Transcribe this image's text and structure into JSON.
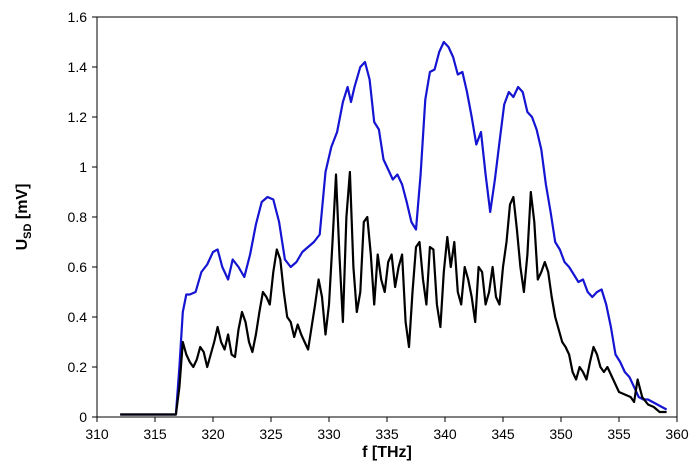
{
  "chart_data": {
    "type": "line",
    "title": "",
    "xlabel": "f [THz]",
    "ylabel_main": "U",
    "ylabel_sub": "SD",
    "ylabel_unit": " [mV]",
    "xlim": [
      310,
      360
    ],
    "ylim": [
      0,
      1.6
    ],
    "xticks": [
      310,
      315,
      320,
      325,
      330,
      335,
      340,
      345,
      350,
      355,
      360
    ],
    "xtick_labels": [
      "310",
      "315",
      "320",
      "325",
      "330",
      "335",
      "340",
      "345",
      "350",
      "355",
      "360"
    ],
    "yticks": [
      0,
      0.2,
      0.4,
      0.6,
      0.8,
      1,
      1.2,
      1.4,
      1.6
    ],
    "ytick_labels": [
      "0",
      "0.2",
      "0.4",
      "0.6",
      "0.8",
      "1",
      "1.2",
      "1.4",
      "1.6"
    ],
    "grid": false,
    "legend": "none",
    "series": [
      {
        "color": "#1414d2",
        "x": [
          312,
          313,
          314,
          315,
          316,
          316.8,
          317.1,
          317.4,
          317.7,
          318,
          318.5,
          319,
          319.5,
          320,
          320.4,
          320.8,
          321.3,
          321.7,
          322.2,
          322.7,
          323.2,
          323.7,
          324.2,
          324.7,
          325.2,
          325.7,
          326.2,
          326.7,
          327.2,
          327.7,
          328.2,
          328.7,
          329.2,
          329.7,
          330.2,
          330.7,
          331.2,
          331.6,
          331.9,
          332.2,
          332.7,
          333.1,
          333.5,
          333.9,
          334.3,
          334.7,
          335.1,
          335.5,
          335.9,
          336.3,
          336.7,
          337.1,
          337.5,
          337.9,
          338.3,
          338.7,
          339.1,
          339.5,
          339.9,
          340.3,
          340.7,
          341.1,
          341.5,
          341.9,
          342.3,
          342.7,
          343.1,
          343.5,
          343.9,
          344.3,
          344.7,
          345.1,
          345.5,
          345.9,
          346.3,
          346.7,
          347.1,
          347.5,
          347.9,
          348.3,
          348.7,
          349.1,
          349.5,
          349.9,
          350.3,
          350.7,
          351.1,
          351.5,
          351.9,
          352.3,
          352.7,
          353.1,
          353.5,
          353.9,
          354.3,
          354.7,
          355.1,
          355.5,
          355.9,
          356.3,
          356.7,
          357.1,
          357.5,
          357.9,
          358.3,
          358.7,
          359.1
        ],
        "y": [
          0.01,
          0.01,
          0.01,
          0.01,
          0.01,
          0.01,
          0.2,
          0.42,
          0.49,
          0.49,
          0.5,
          0.58,
          0.61,
          0.66,
          0.67,
          0.6,
          0.55,
          0.63,
          0.6,
          0.56,
          0.65,
          0.77,
          0.86,
          0.88,
          0.87,
          0.78,
          0.63,
          0.6,
          0.62,
          0.66,
          0.68,
          0.7,
          0.73,
          0.98,
          1.08,
          1.14,
          1.26,
          1.32,
          1.26,
          1.32,
          1.4,
          1.42,
          1.35,
          1.18,
          1.15,
          1.03,
          0.99,
          0.95,
          0.97,
          0.93,
          0.86,
          0.78,
          0.75,
          0.97,
          1.27,
          1.38,
          1.39,
          1.46,
          1.5,
          1.48,
          1.44,
          1.37,
          1.38,
          1.3,
          1.2,
          1.09,
          1.14,
          0.97,
          0.82,
          0.95,
          1.1,
          1.25,
          1.3,
          1.28,
          1.32,
          1.3,
          1.22,
          1.2,
          1.15,
          1.07,
          0.93,
          0.82,
          0.7,
          0.67,
          0.62,
          0.6,
          0.57,
          0.54,
          0.55,
          0.5,
          0.48,
          0.5,
          0.51,
          0.45,
          0.36,
          0.25,
          0.22,
          0.18,
          0.16,
          0.12,
          0.08,
          0.07,
          0.07,
          0.06,
          0.05,
          0.04,
          0.03
        ]
      },
      {
        "color": "#000000",
        "x": [
          312,
          313,
          314,
          315,
          316,
          316.8,
          317.1,
          317.4,
          317.7,
          318,
          318.3,
          318.6,
          318.9,
          319.2,
          319.5,
          319.8,
          320.1,
          320.4,
          320.7,
          321,
          321.3,
          321.6,
          321.9,
          322.2,
          322.5,
          322.8,
          323.1,
          323.4,
          323.7,
          324,
          324.3,
          324.6,
          324.9,
          325.2,
          325.5,
          325.8,
          326.1,
          326.4,
          326.7,
          327,
          327.3,
          327.6,
          327.9,
          328.2,
          328.5,
          328.8,
          329.1,
          329.4,
          329.7,
          330,
          330.3,
          330.6,
          330.9,
          331.2,
          331.5,
          331.8,
          332.1,
          332.4,
          332.7,
          333,
          333.3,
          333.6,
          333.9,
          334.2,
          334.5,
          334.8,
          335.1,
          335.4,
          335.7,
          336,
          336.3,
          336.6,
          336.9,
          337.2,
          337.5,
          337.8,
          338.1,
          338.4,
          338.7,
          339,
          339.3,
          339.6,
          339.9,
          340.2,
          340.5,
          340.8,
          341.1,
          341.4,
          341.7,
          342,
          342.3,
          342.6,
          342.9,
          343.2,
          343.5,
          343.8,
          344.1,
          344.4,
          344.7,
          345,
          345.3,
          345.6,
          345.9,
          346.2,
          346.5,
          346.8,
          347.1,
          347.4,
          347.7,
          348,
          348.3,
          348.6,
          348.9,
          349.2,
          349.5,
          349.8,
          350.1,
          350.4,
          350.7,
          351,
          351.3,
          351.6,
          351.9,
          352.2,
          352.5,
          352.8,
          353.1,
          353.4,
          353.7,
          354,
          354.5,
          355,
          355.5,
          356,
          356.3,
          356.6,
          357,
          357.5,
          358,
          358.5,
          359.1
        ],
        "y": [
          0.01,
          0.01,
          0.01,
          0.01,
          0.01,
          0.01,
          0.12,
          0.3,
          0.25,
          0.22,
          0.2,
          0.23,
          0.28,
          0.26,
          0.2,
          0.25,
          0.3,
          0.36,
          0.3,
          0.27,
          0.33,
          0.25,
          0.24,
          0.35,
          0.42,
          0.38,
          0.3,
          0.26,
          0.33,
          0.42,
          0.5,
          0.48,
          0.45,
          0.58,
          0.67,
          0.63,
          0.5,
          0.4,
          0.38,
          0.32,
          0.37,
          0.33,
          0.3,
          0.27,
          0.36,
          0.45,
          0.55,
          0.48,
          0.33,
          0.45,
          0.7,
          0.97,
          0.65,
          0.38,
          0.8,
          0.98,
          0.6,
          0.42,
          0.5,
          0.78,
          0.8,
          0.65,
          0.45,
          0.65,
          0.55,
          0.5,
          0.62,
          0.65,
          0.52,
          0.6,
          0.65,
          0.38,
          0.28,
          0.5,
          0.68,
          0.7,
          0.55,
          0.45,
          0.68,
          0.67,
          0.45,
          0.36,
          0.58,
          0.72,
          0.6,
          0.7,
          0.5,
          0.45,
          0.6,
          0.55,
          0.48,
          0.38,
          0.6,
          0.58,
          0.45,
          0.5,
          0.6,
          0.48,
          0.45,
          0.6,
          0.7,
          0.85,
          0.88,
          0.75,
          0.6,
          0.5,
          0.65,
          0.9,
          0.78,
          0.55,
          0.58,
          0.62,
          0.58,
          0.48,
          0.4,
          0.35,
          0.3,
          0.28,
          0.25,
          0.18,
          0.15,
          0.2,
          0.18,
          0.15,
          0.22,
          0.28,
          0.25,
          0.2,
          0.18,
          0.2,
          0.15,
          0.1,
          0.09,
          0.08,
          0.06,
          0.15,
          0.08,
          0.05,
          0.04,
          0.02,
          0.02
        ]
      }
    ]
  }
}
